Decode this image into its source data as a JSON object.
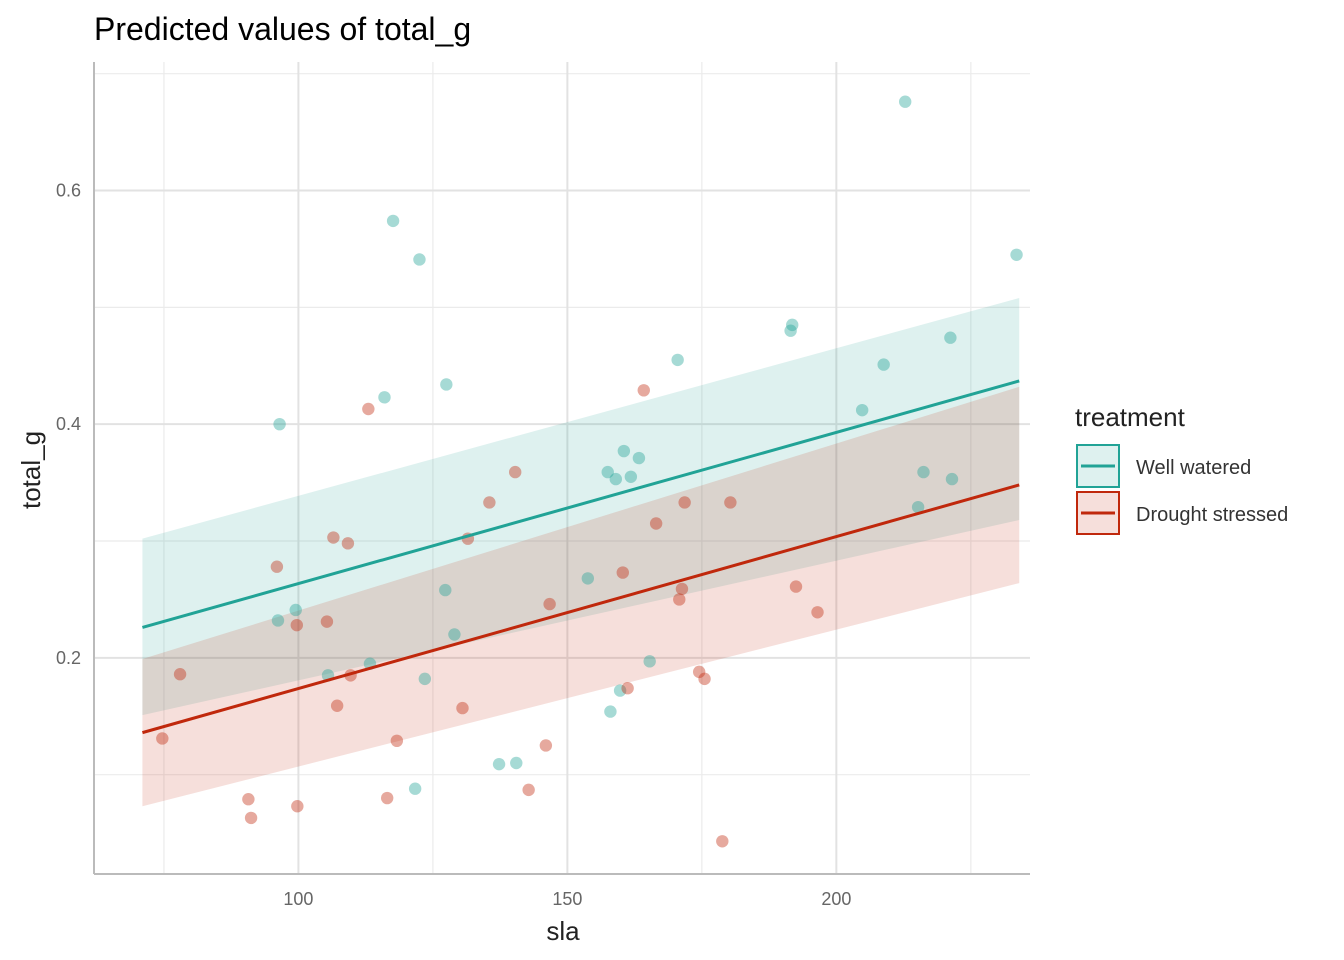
{
  "chart_data": {
    "type": "scatter",
    "title": "Predicted values of total_g",
    "xlabel": "sla",
    "ylabel": "total_g",
    "xlim": [
      62,
      236
    ],
    "ylim": [
      0.015,
      0.71
    ],
    "xticks": [
      100,
      150,
      200
    ],
    "yticks": [
      0.2,
      0.4,
      0.6
    ],
    "x_minor": [
      75,
      125,
      175,
      225
    ],
    "y_minor": [
      0.1,
      0.3,
      0.5,
      0.7
    ],
    "grid": true,
    "legend": {
      "title": "treatment",
      "position": "right",
      "entries": [
        "Well watered",
        "Drought stressed"
      ]
    },
    "series": [
      {
        "name": "Well watered",
        "color": "#21a396",
        "line": {
          "x": [
            71,
            234
          ],
          "y": [
            0.226,
            0.437
          ]
        },
        "band": {
          "x": [
            71,
            234
          ],
          "lower": [
            0.151,
            0.318
          ],
          "upper": [
            0.302,
            0.508
          ]
        },
        "points": [
          {
            "x": 96.5,
            "y": 0.4
          },
          {
            "x": 96.2,
            "y": 0.232
          },
          {
            "x": 99.5,
            "y": 0.241
          },
          {
            "x": 105.5,
            "y": 0.185
          },
          {
            "x": 113.3,
            "y": 0.195
          },
          {
            "x": 116,
            "y": 0.423
          },
          {
            "x": 117.6,
            "y": 0.574
          },
          {
            "x": 122.5,
            "y": 0.541
          },
          {
            "x": 123.5,
            "y": 0.182
          },
          {
            "x": 121.7,
            "y": 0.088
          },
          {
            "x": 127.3,
            "y": 0.258
          },
          {
            "x": 127.5,
            "y": 0.434
          },
          {
            "x": 129,
            "y": 0.22
          },
          {
            "x": 137.3,
            "y": 0.109
          },
          {
            "x": 140.5,
            "y": 0.11
          },
          {
            "x": 153.8,
            "y": 0.268
          },
          {
            "x": 157.5,
            "y": 0.359
          },
          {
            "x": 158,
            "y": 0.154
          },
          {
            "x": 159,
            "y": 0.353
          },
          {
            "x": 159.8,
            "y": 0.172
          },
          {
            "x": 160.5,
            "y": 0.377
          },
          {
            "x": 161.8,
            "y": 0.355
          },
          {
            "x": 163.3,
            "y": 0.371
          },
          {
            "x": 165.3,
            "y": 0.197
          },
          {
            "x": 170.5,
            "y": 0.455
          },
          {
            "x": 191.5,
            "y": 0.48
          },
          {
            "x": 191.8,
            "y": 0.485
          },
          {
            "x": 204.8,
            "y": 0.412
          },
          {
            "x": 208.8,
            "y": 0.451
          },
          {
            "x": 212.8,
            "y": 0.676
          },
          {
            "x": 215.2,
            "y": 0.329
          },
          {
            "x": 216.2,
            "y": 0.359
          },
          {
            "x": 221.2,
            "y": 0.474
          },
          {
            "x": 221.5,
            "y": 0.353
          },
          {
            "x": 233.5,
            "y": 0.545
          }
        ]
      },
      {
        "name": "Drought stressed",
        "color": "#c0280c",
        "line": {
          "x": [
            71,
            234
          ],
          "y": [
            0.136,
            0.348
          ]
        },
        "band": {
          "x": [
            71,
            234
          ],
          "lower": [
            0.073,
            0.264
          ],
          "upper": [
            0.199,
            0.432
          ]
        },
        "points": [
          {
            "x": 74.7,
            "y": 0.131
          },
          {
            "x": 78,
            "y": 0.186
          },
          {
            "x": 90.7,
            "y": 0.079
          },
          {
            "x": 91.2,
            "y": 0.063
          },
          {
            "x": 96,
            "y": 0.278
          },
          {
            "x": 99.7,
            "y": 0.228
          },
          {
            "x": 99.8,
            "y": 0.073
          },
          {
            "x": 105.3,
            "y": 0.231
          },
          {
            "x": 106.5,
            "y": 0.303
          },
          {
            "x": 107.2,
            "y": 0.159
          },
          {
            "x": 109.2,
            "y": 0.298
          },
          {
            "x": 109.7,
            "y": 0.185
          },
          {
            "x": 113,
            "y": 0.413
          },
          {
            "x": 116.5,
            "y": 0.08
          },
          {
            "x": 118.3,
            "y": 0.129
          },
          {
            "x": 130.5,
            "y": 0.157
          },
          {
            "x": 131.5,
            "y": 0.302
          },
          {
            "x": 135.5,
            "y": 0.333
          },
          {
            "x": 140.3,
            "y": 0.359
          },
          {
            "x": 142.8,
            "y": 0.087
          },
          {
            "x": 146,
            "y": 0.125
          },
          {
            "x": 146.7,
            "y": 0.246
          },
          {
            "x": 160.3,
            "y": 0.273
          },
          {
            "x": 161.2,
            "y": 0.174
          },
          {
            "x": 164.2,
            "y": 0.429
          },
          {
            "x": 166.5,
            "y": 0.315
          },
          {
            "x": 170.8,
            "y": 0.25
          },
          {
            "x": 171.3,
            "y": 0.259
          },
          {
            "x": 171.8,
            "y": 0.333
          },
          {
            "x": 174.5,
            "y": 0.188
          },
          {
            "x": 175.5,
            "y": 0.182
          },
          {
            "x": 178.8,
            "y": 0.043
          },
          {
            "x": 180.3,
            "y": 0.333
          },
          {
            "x": 192.5,
            "y": 0.261
          },
          {
            "x": 196.5,
            "y": 0.239
          }
        ]
      }
    ]
  }
}
